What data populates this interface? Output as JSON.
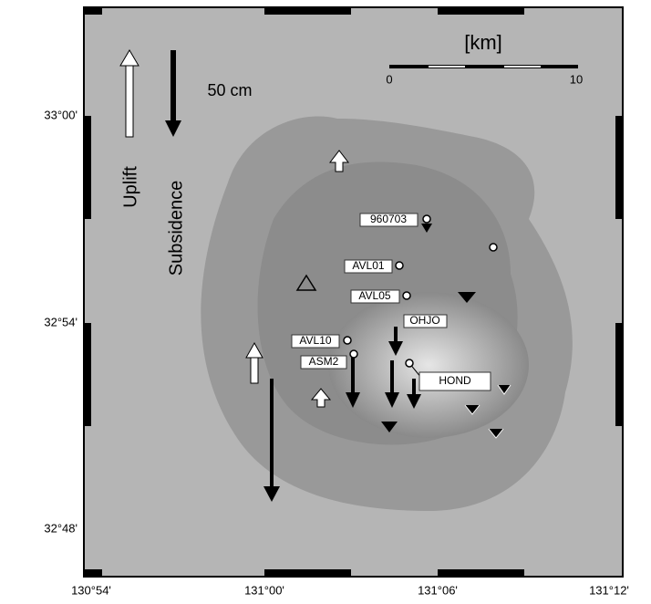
{
  "latitude_labels": [
    "33°00'",
    "32°54'",
    "32°48'"
  ],
  "longitude_labels": [
    "130°54'",
    "131°00'",
    "131°06'",
    "131°12'"
  ],
  "legend": {
    "uplift": "Uplift",
    "subsidence": "Subsidence",
    "scale": "50 cm"
  },
  "scale_bar": {
    "unit": "[km]",
    "start": "0",
    "end": "10"
  },
  "stations": [
    "960703",
    "AVL01",
    "AVL05",
    "OHJO",
    "AVL10",
    "ASM2",
    "HOND"
  ]
}
